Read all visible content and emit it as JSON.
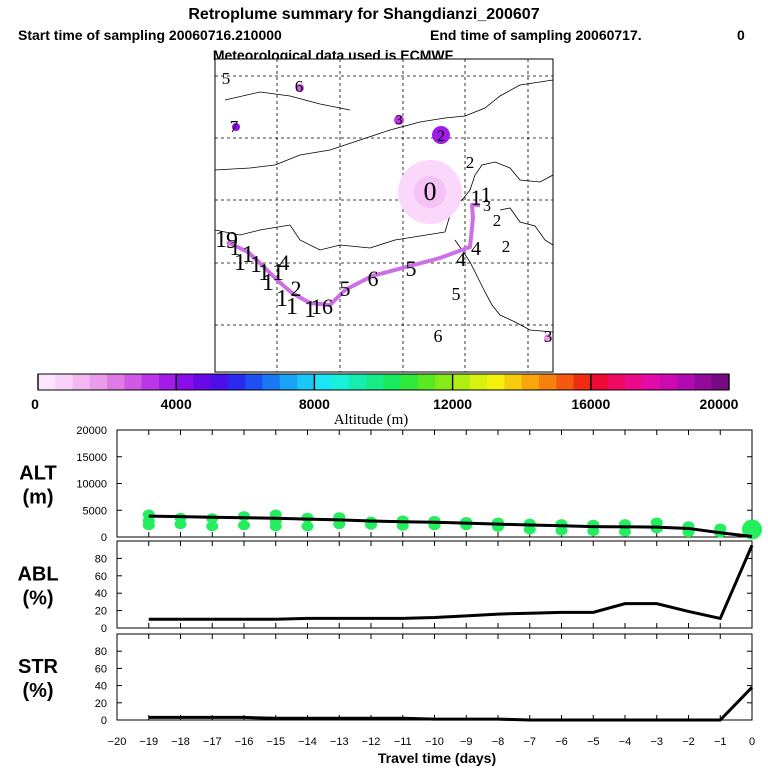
{
  "header": {
    "title": "Retroplume summary for Shangdianzi_200607",
    "start": "Start time of sampling 20060716.210000",
    "end": "End time of sampling 20060717.",
    "end_suffix": "0",
    "met": "Meteorological data used is ECMWF"
  },
  "colorbar": {
    "label": "Altitude (m)",
    "ticks": [
      "0",
      "4000",
      "8000",
      "12000",
      "16000",
      "20000"
    ],
    "colors": [
      "#fde6fd",
      "#f9d2f9",
      "#f2b8f2",
      "#ea9bea",
      "#e07be6",
      "#d05ae4",
      "#bb36e6",
      "#a21ce8",
      "#8a0ce8",
      "#6b08e8",
      "#4b10ea",
      "#2a2af0",
      "#1c50f2",
      "#1a78f4",
      "#1aa2f6",
      "#1ac8f8",
      "#1ae6f6",
      "#18f0d8",
      "#16eeb0",
      "#16ec88",
      "#1aea5e",
      "#2ee83a",
      "#5ae822",
      "#86ea16",
      "#b0ee12",
      "#d8f210",
      "#f6f00e",
      "#f8cc0c",
      "#f8a60c",
      "#f6800c",
      "#f45a0e",
      "#f02c14",
      "#ee0a34",
      "#ee0a62",
      "#ec0a8a",
      "#e20aa8",
      "#cc0ab0",
      "#b00ab0",
      "#920a9a",
      "#760a80"
    ]
  },
  "map": {
    "numbers": [
      {
        "t": "5",
        "fs": 17
      },
      {
        "t": "6",
        "fs": 17
      },
      {
        "t": "7",
        "fs": 17
      },
      {
        "t": "3",
        "fs": 14
      },
      {
        "t": "2",
        "fs": 16
      },
      {
        "t": "2",
        "fs": 17
      },
      {
        "t": "0",
        "fs": 26
      },
      {
        "t": "1",
        "fs": 22
      },
      {
        "t": "1",
        "fs": 22
      },
      {
        "t": "3",
        "fs": 16
      },
      {
        "t": "2",
        "fs": 17
      },
      {
        "t": "2",
        "fs": 17
      },
      {
        "t": "4",
        "fs": 20
      },
      {
        "t": "4",
        "fs": 20
      },
      {
        "t": "5",
        "fs": 22
      },
      {
        "t": "5",
        "fs": 18
      },
      {
        "t": "6",
        "fs": 22
      },
      {
        "t": "6",
        "fs": 18
      },
      {
        "t": "3",
        "fs": 17
      },
      {
        "t": "5",
        "fs": 22
      },
      {
        "t": "16",
        "fs": 22
      },
      {
        "t": "1",
        "fs": 24
      },
      {
        "t": "1",
        "fs": 24
      },
      {
        "t": "2",
        "fs": 22
      },
      {
        "t": "1",
        "fs": 24
      },
      {
        "t": "1",
        "fs": 24
      },
      {
        "t": "9",
        "fs": 24
      },
      {
        "t": "1",
        "fs": 24
      },
      {
        "t": "1",
        "fs": 24
      },
      {
        "t": "1",
        "fs": 24
      },
      {
        "t": "1",
        "fs": 24
      },
      {
        "t": "4",
        "fs": 22
      },
      {
        "t": "1",
        "fs": 24
      },
      {
        "t": "1",
        "fs": 24
      },
      {
        "t": "1",
        "fs": 22
      }
    ]
  },
  "chart_data": [
    {
      "type": "scatter",
      "panel": "ALT",
      "ylabel": "ALT (m)",
      "ylabel_line1": "ALT",
      "ylabel_line2": "(m)",
      "ylim": [
        0,
        20000
      ],
      "yticks": [
        "0",
        "5000",
        "10000",
        "15000",
        "20000"
      ],
      "line_x": [
        -19,
        -18,
        -17,
        -16,
        -15,
        -14,
        -13,
        -12,
        -11,
        -10,
        -9,
        -8,
        -7,
        -6,
        -5,
        -4,
        -3,
        -2,
        -1,
        0
      ],
      "line_y": [
        3900,
        3800,
        3700,
        3600,
        3500,
        3350,
        3200,
        3000,
        2850,
        2750,
        2600,
        2400,
        2250,
        2100,
        1950,
        1900,
        1850,
        1600,
        800,
        100
      ],
      "spread_points": [
        [
          -19,
          4200
        ],
        [
          -19,
          3000
        ],
        [
          -19,
          2200
        ],
        [
          -18,
          3600
        ],
        [
          -18,
          2400
        ],
        [
          -17,
          3500
        ],
        [
          -17,
          2000
        ],
        [
          -16,
          3900
        ],
        [
          -16,
          2200
        ],
        [
          -15,
          4200
        ],
        [
          -15,
          3000
        ],
        [
          -15,
          2000
        ],
        [
          -14,
          3600
        ],
        [
          -14,
          2000
        ],
        [
          -13,
          3700
        ],
        [
          -13,
          2400
        ],
        [
          -12,
          2900
        ],
        [
          -12,
          2300
        ],
        [
          -11,
          3100
        ],
        [
          -11,
          2100
        ],
        [
          -10,
          3000
        ],
        [
          -10,
          2200
        ],
        [
          -9,
          2800
        ],
        [
          -9,
          2200
        ],
        [
          -8,
          2700
        ],
        [
          -8,
          1900
        ],
        [
          -7,
          2500
        ],
        [
          -7,
          1400
        ],
        [
          -6,
          2400
        ],
        [
          -6,
          1200
        ],
        [
          -5,
          2300
        ],
        [
          -5,
          1100
        ],
        [
          -4,
          2400
        ],
        [
          -4,
          1000
        ],
        [
          -3,
          2700
        ],
        [
          -3,
          1600
        ],
        [
          -2,
          2000
        ],
        [
          -2,
          900
        ],
        [
          -1,
          1600
        ],
        [
          -1,
          800
        ],
        [
          0,
          1800
        ]
      ],
      "color": "#22ee5e"
    },
    {
      "type": "line",
      "panel": "ABL",
      "ylabel": "ABL (%)",
      "ylabel_line1": "ABL",
      "ylabel_line2": "(%)",
      "ylim": [
        0,
        100
      ],
      "yticks": [
        "0",
        "20",
        "40",
        "60",
        "80"
      ],
      "x": [
        -19,
        -18,
        -17,
        -16,
        -15,
        -14,
        -13,
        -12,
        -11,
        -10,
        -9,
        -8,
        -7,
        -6,
        -5,
        -4,
        -3,
        -2,
        -1,
        0
      ],
      "y": [
        10,
        10,
        10,
        10,
        10,
        11,
        11,
        11,
        11,
        12,
        14,
        16,
        17,
        18,
        18,
        28,
        28,
        19,
        11,
        95
      ]
    },
    {
      "type": "line",
      "panel": "STR",
      "ylabel": "STR (%)",
      "ylabel_line1": "STR",
      "ylabel_line2": "(%)",
      "ylim": [
        0,
        100
      ],
      "yticks": [
        "0",
        "20",
        "40",
        "60",
        "80"
      ],
      "x": [
        -19,
        -18,
        -17,
        -16,
        -15,
        -14,
        -13,
        -12,
        -11,
        -10,
        -9,
        -8,
        -7,
        -6,
        -5,
        -4,
        -3,
        -2,
        -1,
        0
      ],
      "y": [
        3,
        3,
        3,
        3,
        2,
        2,
        2,
        2,
        2,
        1,
        1,
        1,
        0,
        0,
        0,
        0,
        0,
        0,
        0,
        38
      ]
    }
  ],
  "xaxis": {
    "label": "Travel time (days)",
    "ticks": [
      "−20",
      "−19",
      "−18",
      "−17",
      "−16",
      "−15",
      "−14",
      "−13",
      "−12",
      "−11",
      "−10",
      "−9",
      "−8",
      "−7",
      "−6",
      "−5",
      "−4",
      "−3",
      "−2",
      "−1",
      "0"
    ]
  }
}
